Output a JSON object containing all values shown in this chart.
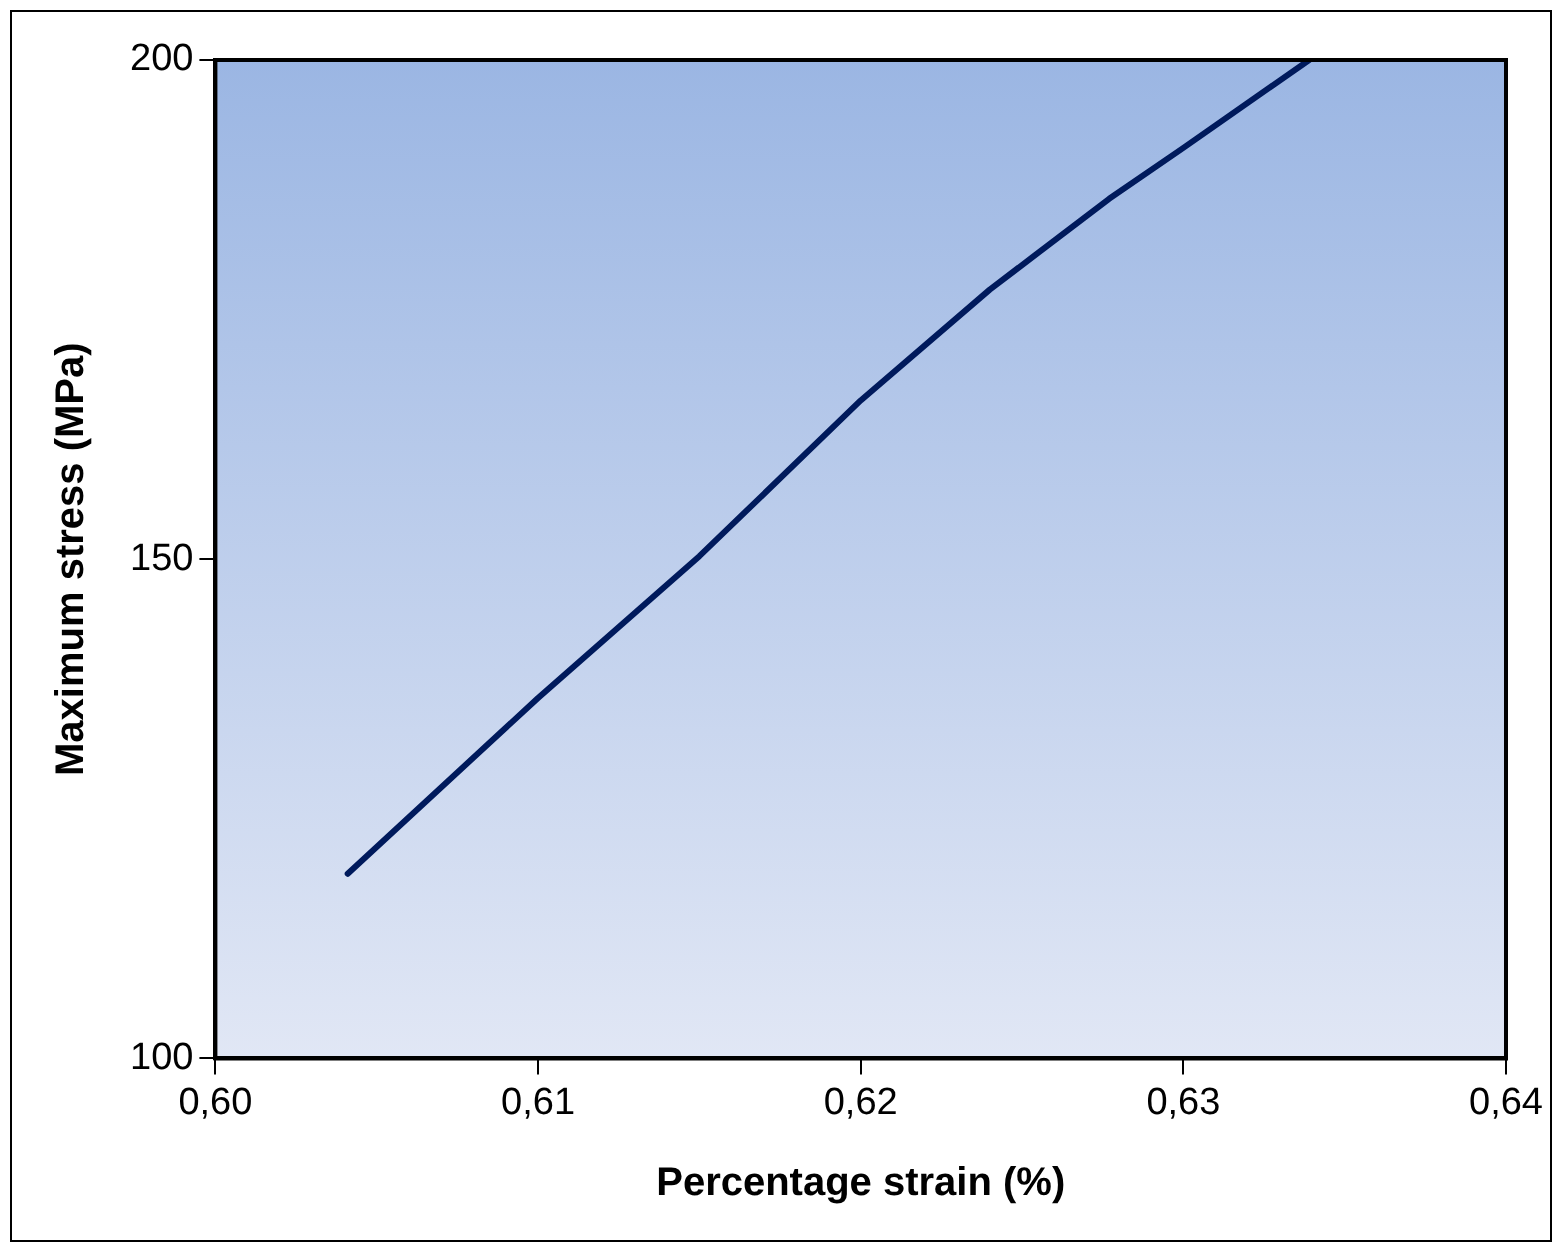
{
  "chart_data": {
    "type": "line",
    "xlabel": "Percentage strain (%)",
    "ylabel": "Maximum stress (MPa)",
    "x": [
      0.6041,
      0.61,
      0.615,
      0.62,
      0.624,
      0.6277,
      0.63,
      0.6339
    ],
    "series": [
      {
        "color": "#001a5c",
        "values": [
          118.5,
          136.1,
          150.3,
          165.9,
          177.0,
          186.1,
          191.2,
          200
        ]
      }
    ],
    "xlim": [
      0.6,
      0.64
    ],
    "xticks": [
      {
        "value": 0.6,
        "label": "0,60"
      },
      {
        "value": 0.61,
        "label": "0,61"
      },
      {
        "value": 0.62,
        "label": "0,62"
      },
      {
        "value": 0.63,
        "label": "0,63"
      },
      {
        "value": 0.64,
        "label": "0,64"
      }
    ],
    "ylim": [
      100,
      200
    ],
    "yticks": [
      100,
      150,
      200
    ],
    "grid": false,
    "legend": false,
    "marker": "none",
    "line_style": "solid"
  }
}
